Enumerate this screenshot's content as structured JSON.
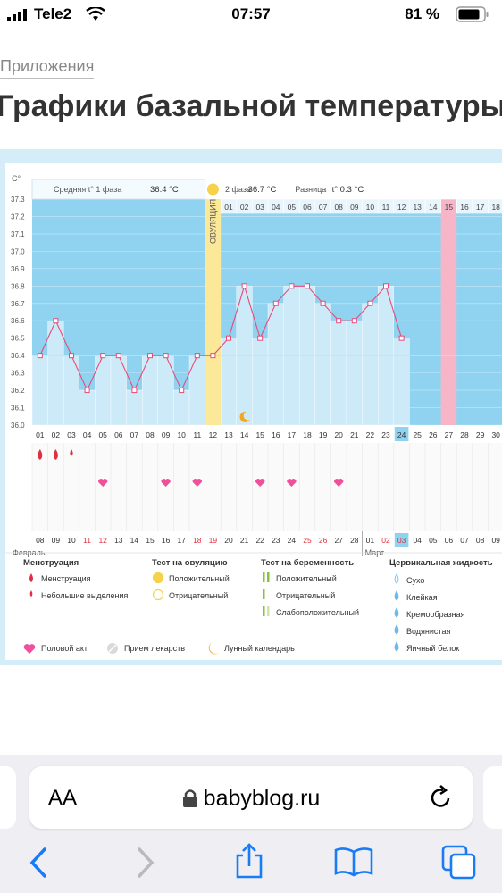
{
  "status_bar": {
    "carrier": "Tele2",
    "time": "07:57",
    "battery": "81 %"
  },
  "breadcrumb": "Приложения",
  "page_title": "Графики базальной температуры",
  "chart_data": {
    "type": "line",
    "y_unit": "С°",
    "ylim": [
      36.0,
      37.3
    ],
    "y_ticks": [
      "37.3",
      "37.2",
      "37.1",
      "37.0",
      "36.9",
      "36.8",
      "36.7",
      "36.6",
      "36.5",
      "36.4",
      "36.3",
      "36.2",
      "36.1",
      "36.0"
    ],
    "header": {
      "phase1": "Средняя t° 1 фаза",
      "phase1_value": "36.4 °C",
      "phase2": "2 фаза",
      "phase2_value": "36.7 °C",
      "diff": "Разница",
      "diff_value": "t° 0.3 °C",
      "ovulation": "ОВУЛЯЦИЯ"
    },
    "cycle_days": [
      "01",
      "02",
      "03",
      "04",
      "05",
      "06",
      "07",
      "08",
      "09",
      "10",
      "11",
      "12",
      "13",
      "14",
      "15",
      "16",
      "17",
      "18",
      "19",
      "20",
      "21",
      "22",
      "23",
      "24",
      "25",
      "26",
      "27",
      "28",
      "29",
      "30"
    ],
    "post_ovulation_days": [
      "01",
      "02",
      "03",
      "04",
      "05",
      "06",
      "07",
      "08",
      "09",
      "10",
      "11",
      "12",
      "13",
      "14",
      "15",
      "16",
      "17",
      "18"
    ],
    "temperatures": [
      36.4,
      36.6,
      36.4,
      36.2,
      36.4,
      36.4,
      36.2,
      36.4,
      36.4,
      36.2,
      36.4,
      36.4,
      36.5,
      36.8,
      36.5,
      36.7,
      36.8,
      36.8,
      36.7,
      36.6,
      36.6,
      36.7,
      36.8,
      36.5
    ],
    "cover_line": 36.4,
    "ovulation_cycle_day": 12,
    "today_cycle_day": 24,
    "highlighted_post_day": 15,
    "menstruation_days": [
      1,
      2,
      3
    ],
    "intercourse_days": [
      5,
      9,
      11,
      15,
      17,
      20
    ],
    "moon_cycle_day": 14,
    "calendar_dates": [
      "08",
      "09",
      "10",
      "11",
      "12",
      "13",
      "14",
      "15",
      "16",
      "17",
      "18",
      "19",
      "20",
      "21",
      "22",
      "23",
      "24",
      "25",
      "26",
      "27",
      "28",
      "01",
      "02",
      "03",
      "04",
      "05",
      "06",
      "07",
      "08",
      "09"
    ],
    "red_calendar_indexes": [
      3,
      4,
      10,
      11,
      17,
      18,
      22,
      23
    ],
    "months": {
      "start": "Февраль",
      "next": "Март"
    },
    "colors": {
      "below": "#8fd3f0",
      "fill": "#cdeaf9",
      "line": "#e64b7a",
      "ovulation": "#fbe999",
      "highlight": "#f6b6c8",
      "cover": "#e6e67a"
    }
  },
  "legend": {
    "menstruation": {
      "title": "Менструация",
      "items": [
        "Менструация",
        "Небольшие выделения"
      ]
    },
    "ovulation_test": {
      "title": "Тест на овуляцию",
      "items": [
        "Положительный",
        "Отрицательный"
      ]
    },
    "pregnancy_test": {
      "title": "Тест на беременность",
      "items": [
        "Положительный",
        "Отрицательный",
        "Слабоположительный"
      ]
    },
    "cervical": {
      "title": "Цервикальная жидкость",
      "items": [
        "Сухо",
        "Клейкая",
        "Кремообразная",
        "Водянистая",
        "Яичный белок"
      ]
    },
    "other": [
      "Половой акт",
      "Прием лекарств",
      "Лунный календарь"
    ]
  },
  "browser": {
    "aa_label": "AA",
    "url": "babyblog.ru"
  }
}
